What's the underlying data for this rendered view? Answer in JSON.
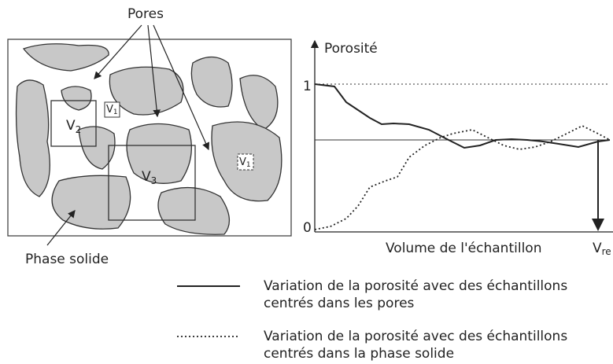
{
  "left_panel": {
    "pores_label": "Pores",
    "solid_label": "Phase solide",
    "volumes": [
      {
        "letter": "V",
        "index": "2"
      },
      {
        "letter": "V",
        "index": "1"
      },
      {
        "letter": "V",
        "index": "3"
      },
      {
        "letter": "V",
        "index": "1"
      }
    ]
  },
  "graph": {
    "y_label": "Porosité",
    "y_top": "1",
    "y_bottom": "0",
    "x_label": "Volume de l'échantillon",
    "v_rev": {
      "letter": "V",
      "index": "re"
    }
  },
  "legend": [
    {
      "lines": [
        "Variation de la porosité avec des échantillons",
        "centrés dans les pores"
      ]
    },
    {
      "lines": [
        "Variation de la porosité avec des échantillons",
        "centrés dans la phase solide"
      ]
    }
  ]
}
